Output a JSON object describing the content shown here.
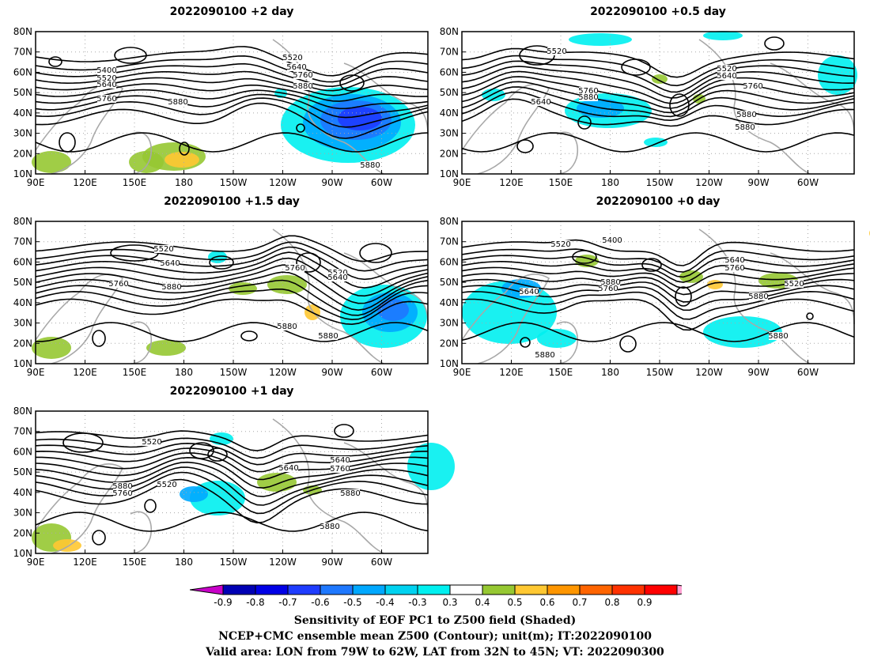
{
  "panels": [
    {
      "id": "p1",
      "title": "2022090100 +2 day"
    },
    {
      "id": "p2",
      "title": "2022090100 +0.5 day"
    },
    {
      "id": "p3",
      "title": "2022090100 +1.5 day"
    },
    {
      "id": "p4",
      "title": "2022090100 +0 day"
    },
    {
      "id": "p5",
      "title": "2022090100 +1 day"
    }
  ],
  "lat_ticks": [
    "80N",
    "70N",
    "60N",
    "50N",
    "40N",
    "30N",
    "20N",
    "10N"
  ],
  "lon_ticks": [
    "90E",
    "120E",
    "150E",
    "180",
    "150W",
    "120W",
    "90W",
    "60W"
  ],
  "contour_labels": {
    "p1": [
      "5400",
      "5520",
      "5640",
      "5760",
      "5880",
      "5520",
      "5640",
      "5760",
      "5880",
      "5880"
    ],
    "p2": [
      "5520",
      "5640",
      "5760",
      "5880",
      "5520",
      "5640",
      "5760",
      "5880",
      "5880"
    ],
    "p3": [
      "5520",
      "5640",
      "5760",
      "5880",
      "5760",
      "5520",
      "5640",
      "5880",
      "5880"
    ],
    "p4": [
      "5520",
      "5400",
      "5640",
      "5760",
      "5880",
      "5640",
      "5760",
      "5520",
      "5880",
      "5880",
      "5880"
    ],
    "p5": [
      "5520",
      "5640",
      "5760",
      "5880",
      "5760",
      "5520",
      "5640",
      "5880",
      "5880"
    ]
  },
  "colorbar": {
    "labels": [
      "-0.9",
      "-0.8",
      "-0.7",
      "-0.6",
      "-0.5",
      "-0.4",
      "-0.3",
      "0.3",
      "0.4",
      "0.5",
      "0.6",
      "0.7",
      "0.8",
      "0.9"
    ],
    "colors": [
      "#c800c8",
      "#0000b4",
      "#0000e6",
      "#1e3cff",
      "#1e78ff",
      "#00a8ff",
      "#00d2f0",
      "#00f0f0",
      "#ffffff",
      "#96c832",
      "#ffc832",
      "#ff9600",
      "#ff6400",
      "#ff3200",
      "#ff0000",
      "#ffa0d2"
    ]
  },
  "shading_colors": {
    "blue_dark": "#1e3cff",
    "blue_mid": "#1e78ff",
    "blue_light": "#00a8ff",
    "cyan": "#00f0f0",
    "green": "#96c832",
    "yellow": "#ffc832",
    "orange": "#ff9600"
  },
  "footer": {
    "line1": "Sensitivity of EOF PC1 to Z500 field (Shaded)",
    "line2": "NCEP+CMC ensemble mean Z500 (Contour); unit(m); IT:2022090100",
    "line3": "Valid area: LON from 79W to 62W, LAT from 32N to 45N; VT: 2022090300"
  }
}
